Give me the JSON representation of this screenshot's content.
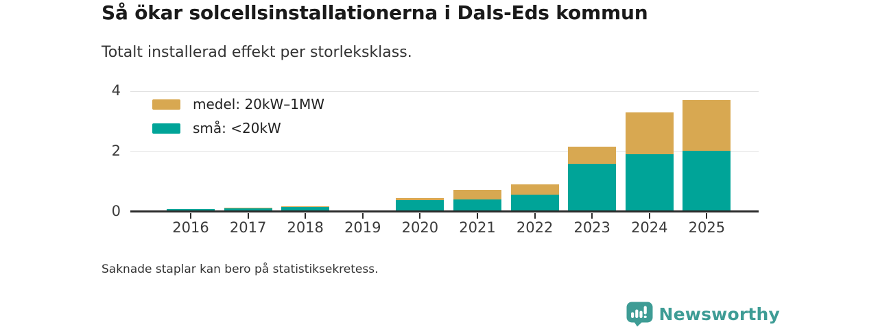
{
  "header": {
    "title": "Så ökar solcellsinstallationerna i Dals-Eds kommun",
    "subtitle": "Totalt installerad effekt per storleksklass."
  },
  "footnote": "Saknade staplar kan bero på statistiksekretess.",
  "branding": {
    "logo_text": "Newsworthy",
    "logo_icon": "bar-chart-speech-bubble-icon",
    "logo_color": "#3e9c95"
  },
  "colors": {
    "teal": "#00a498",
    "gold": "#d8a851",
    "axis": "#2b2b2b",
    "gridline": "#e2e2e2",
    "title_text": "#1a1a1a",
    "body_text": "#333333"
  },
  "legend": [
    {
      "label": "medel: 20kW–1MW",
      "color": "#d8a851"
    },
    {
      "label": "små: <20kW",
      "color": "#00a498"
    }
  ],
  "chart_data": {
    "type": "bar",
    "stacked": true,
    "title": "Så ökar solcellsinstallationerna i Dals-Eds kommun",
    "subtitle": "Totalt installerad effekt per storleksklass.",
    "categories": [
      "2016",
      "2017",
      "2018",
      "2019",
      "2020",
      "2021",
      "2022",
      "2023",
      "2024",
      "2025"
    ],
    "series": [
      {
        "name": "små: <20kW",
        "color": "#00a498",
        "values": [
          0.09,
          0.12,
          0.17,
          null,
          0.38,
          0.42,
          0.57,
          1.6,
          1.9,
          2.02
        ]
      },
      {
        "name": "medel: 20kW–1MW",
        "color": "#d8a851",
        "values": [
          0.0,
          0.02,
          0.02,
          null,
          0.08,
          0.31,
          0.35,
          0.56,
          1.4,
          1.68
        ]
      }
    ],
    "totals": [
      0.09,
      0.14,
      0.19,
      null,
      0.46,
      0.73,
      0.92,
      2.16,
      3.3,
      3.7
    ],
    "missing_categories": [
      "2019"
    ],
    "xlabel": "",
    "ylabel": "",
    "ylim": [
      0,
      4.2
    ],
    "yticks": [
      0,
      2,
      4
    ],
    "grid": "horizontal",
    "legend_position": "top-left-inside"
  }
}
